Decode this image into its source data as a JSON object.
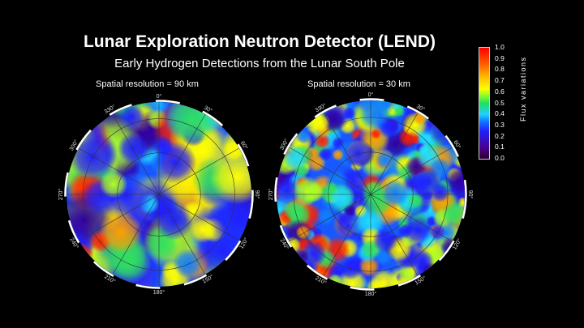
{
  "title": "Lunar Exploration Neutron Detector (LEND)",
  "subtitle": "Early Hydrogen Detections from the Lunar South Pole",
  "maps": [
    {
      "label": "Spatial resolution = 90 km"
    },
    {
      "label": "Spatial resolution = 30 km"
    }
  ],
  "longitude_labels": [
    "0°",
    "30°",
    "60°",
    "90°",
    "120°",
    "150°",
    "180°",
    "210°",
    "240°",
    "270°",
    "300°",
    "330°"
  ],
  "colorbar": {
    "label": "Flux variations",
    "ticks": [
      "1.0",
      "0.9",
      "0.8",
      "0.7",
      "0.6",
      "0.5",
      "0.4",
      "0.3",
      "0.2",
      "0.1",
      "0.0"
    ],
    "range": [
      0.0,
      1.0
    ],
    "colors": [
      "#2a0030",
      "#4a0090",
      "#2020ff",
      "#20d0ff",
      "#20e060",
      "#ffff00",
      "#ffb000",
      "#ff0000"
    ]
  }
}
